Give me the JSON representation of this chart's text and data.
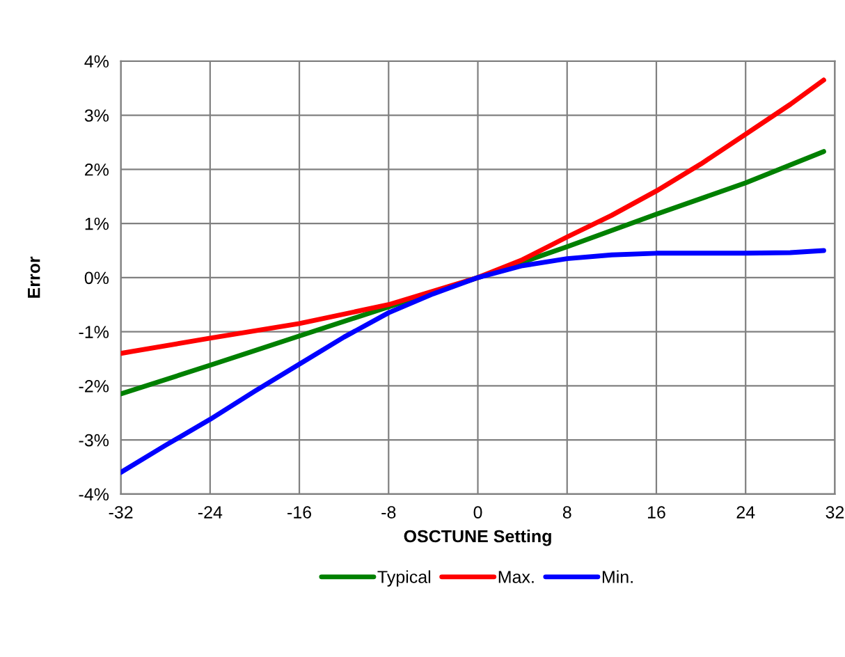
{
  "chart_data": {
    "type": "line",
    "xlabel": "OSCTUNE Setting",
    "ylabel": "Error",
    "xlim": [
      -32,
      32
    ],
    "xticks": [
      -32,
      -24,
      -16,
      -8,
      0,
      8,
      16,
      24,
      32
    ],
    "ylim": [
      -4,
      4
    ],
    "yticks": [
      {
        "value": -4,
        "label": "-4%"
      },
      {
        "value": -3,
        "label": "-3%"
      },
      {
        "value": -2,
        "label": "-2%"
      },
      {
        "value": -1,
        "label": "-1%"
      },
      {
        "value": 0,
        "label": "0%"
      },
      {
        "value": 1,
        "label": "1%"
      },
      {
        "value": 2,
        "label": "2%"
      },
      {
        "value": 3,
        "label": "3%"
      },
      {
        "value": 4,
        "label": "4%"
      }
    ],
    "grid": true,
    "legend": "bottom",
    "marker": "none",
    "line_style": "solid",
    "series": [
      {
        "name": "Typical",
        "color": "#008000",
        "x": [
          -32,
          -24,
          -16,
          -8,
          0,
          8,
          16,
          24,
          31
        ],
        "values": [
          -2.15,
          -1.62,
          -1.08,
          -0.54,
          0,
          0.57,
          1.17,
          1.75,
          2.33
        ]
      },
      {
        "name": "Max.",
        "color": "#ff0000",
        "x": [
          -32,
          -24,
          -16,
          -8,
          -4,
          0,
          4,
          8,
          12,
          16,
          20,
          24,
          28,
          31
        ],
        "values": [
          -1.4,
          -1.12,
          -0.85,
          -0.5,
          -0.25,
          0,
          0.33,
          0.75,
          1.15,
          1.6,
          2.1,
          2.65,
          3.2,
          3.65
        ]
      },
      {
        "name": "Min.",
        "color": "#0000ff",
        "x": [
          -32,
          -28,
          -24,
          -20,
          -16,
          -12,
          -8,
          -4,
          0,
          4,
          8,
          12,
          16,
          20,
          24,
          28,
          31
        ],
        "values": [
          -3.6,
          -3.1,
          -2.62,
          -2.1,
          -1.6,
          -1.1,
          -0.65,
          -0.3,
          0,
          0.22,
          0.35,
          0.42,
          0.45,
          0.45,
          0.45,
          0.46,
          0.5
        ]
      }
    ]
  }
}
